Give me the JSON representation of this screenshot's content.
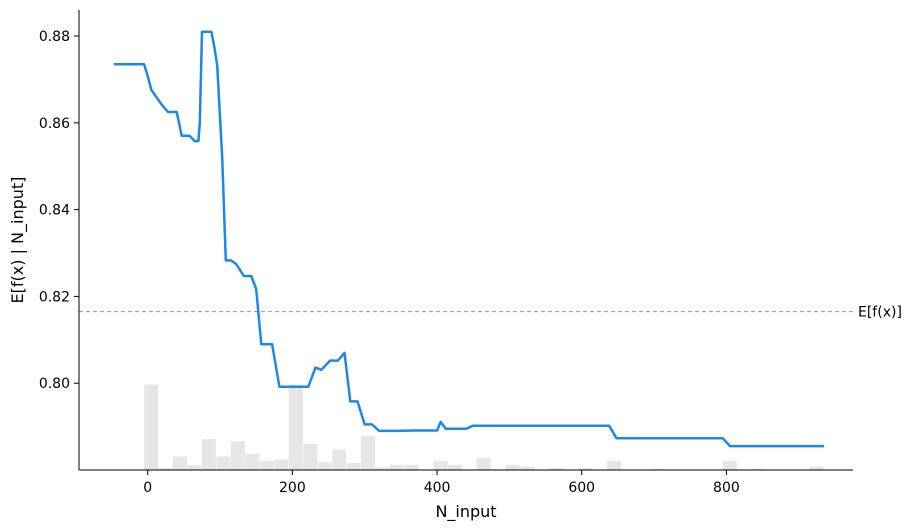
{
  "chart_data": {
    "type": "line",
    "xlabel": "N_input",
    "ylabel": "E[f(x) | N_input]",
    "xlim": [
      -95,
      975
    ],
    "ylim": [
      0.78,
      0.886
    ],
    "xticks": [
      0,
      200,
      400,
      600,
      800
    ],
    "yticks": [
      0.8,
      0.82,
      0.84,
      0.86,
      0.88
    ],
    "xtick_labels": [
      "0",
      "200",
      "400",
      "600",
      "800"
    ],
    "ytick_labels": [
      "0.80",
      "0.82",
      "0.84",
      "0.86",
      "0.88"
    ],
    "grid": false,
    "line_color": "#1e88e5",
    "baseline": {
      "label": "E[f(x)]",
      "value": 0.8165,
      "color": "#999999"
    },
    "series": [
      {
        "x": [
          -47,
          -5,
          0,
          5,
          18,
          28,
          40,
          47,
          58,
          65,
          70,
          72,
          75,
          82,
          88,
          92,
          96,
          103,
          108,
          115,
          122,
          133,
          143,
          150,
          157,
          163,
          172,
          182,
          190,
          202,
          213,
          222,
          232,
          240,
          252,
          263,
          272,
          280,
          290,
          300,
          310,
          320,
          340,
          370,
          400,
          405,
          412,
          420,
          440,
          450,
          500,
          580,
          630,
          638,
          648,
          680,
          720,
          790,
          795,
          805,
          835,
          935
        ],
        "y": [
          0.8735,
          0.8735,
          0.8708,
          0.8676,
          0.8645,
          0.8625,
          0.8625,
          0.857,
          0.857,
          0.8558,
          0.8558,
          0.86,
          0.881,
          0.881,
          0.881,
          0.8775,
          0.8733,
          0.852,
          0.8283,
          0.8283,
          0.8275,
          0.8247,
          0.8247,
          0.8217,
          0.809,
          0.809,
          0.809,
          0.7992,
          0.7992,
          0.7992,
          0.7992,
          0.7992,
          0.8036,
          0.8031,
          0.8052,
          0.8052,
          0.807,
          0.7958,
          0.7958,
          0.7905,
          0.7905,
          0.789,
          0.789,
          0.7891,
          0.7891,
          0.7911,
          0.7895,
          0.7895,
          0.7895,
          0.7902,
          0.7902,
          0.7902,
          0.7902,
          0.7902,
          0.7873,
          0.7873,
          0.7873,
          0.7873,
          0.7873,
          0.7855,
          0.7855,
          0.7855
        ]
      }
    ],
    "histogram": {
      "color": "#e6e6e6",
      "bin_start": -5,
      "bin_width": 20,
      "heights": [
        0.0197,
        0.0005,
        0.0031,
        0.0011,
        0.0071,
        0.0031,
        0.0066,
        0.0037,
        0.0021,
        0.0024,
        0.0197,
        0.006,
        0.0018,
        0.0047,
        0.0016,
        0.0078,
        0.0006,
        0.0012,
        0.0012,
        0.0,
        0.0021,
        0.0012,
        0.0,
        0.0028,
        0.0,
        0.0012,
        0.0008,
        0.0,
        0.0004,
        0.0,
        0.0004,
        0.0,
        0.0021,
        0.0,
        0.0,
        0.0003,
        0.0,
        0.0,
        0.0,
        0.0,
        0.0021,
        0.0,
        0.0003,
        0.0,
        0.0,
        0.0,
        0.0008
      ]
    }
  }
}
